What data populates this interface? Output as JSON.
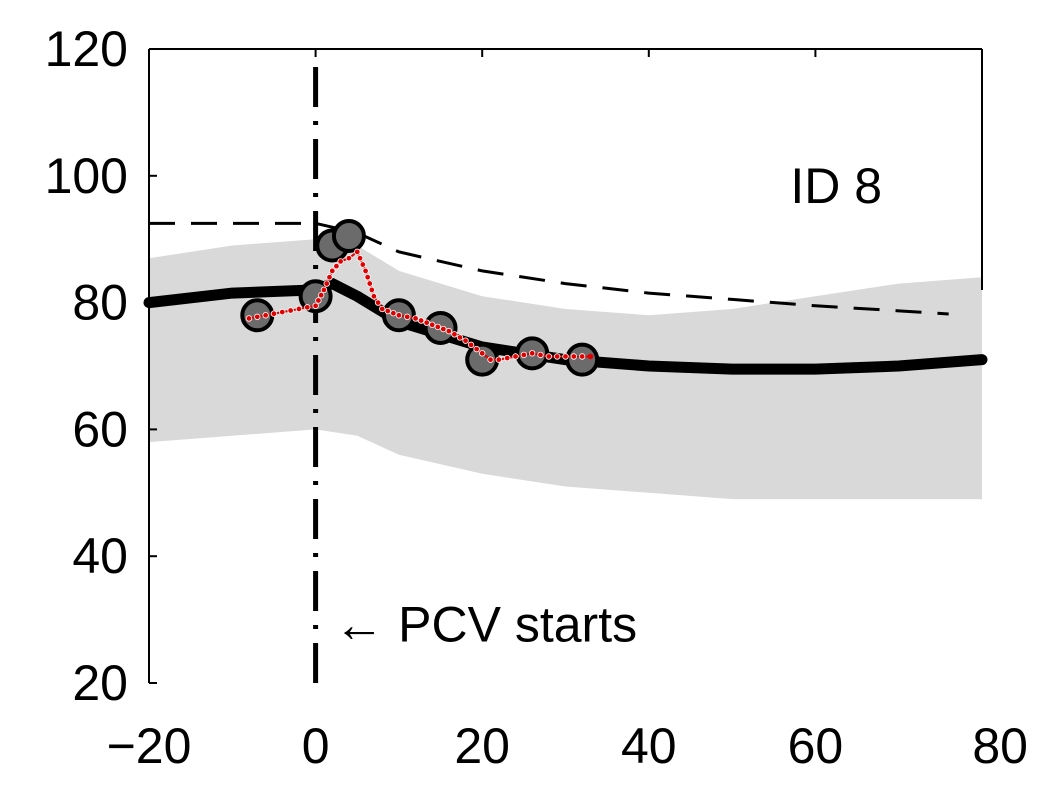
{
  "chart_data": {
    "type": "line",
    "title": "",
    "xlabel": "",
    "ylabel": "",
    "xlim": [
      -20,
      80
    ],
    "ylim": [
      20,
      120
    ],
    "xticks": [
      -20,
      0,
      20,
      40,
      60,
      80
    ],
    "yticks": [
      20,
      40,
      60,
      80,
      100,
      120
    ],
    "xtick_labels": [
      "−20",
      "0",
      "20",
      "40",
      "60",
      "80"
    ],
    "ytick_labels": [
      "20",
      "40",
      "60",
      "80",
      "100",
      "120"
    ],
    "grid": false,
    "band": {
      "x": [
        -20,
        -10,
        0,
        5,
        10,
        20,
        30,
        40,
        50,
        60,
        70,
        80
      ],
      "upper": [
        87,
        89,
        90,
        89,
        85,
        81,
        79,
        78,
        79,
        81,
        83,
        84
      ],
      "lower": [
        58,
        59,
        60,
        59,
        56,
        53,
        51,
        50,
        49,
        49,
        49,
        49
      ]
    },
    "series": [
      {
        "style": "dashed",
        "x": [
          -20,
          -10,
          0,
          5,
          10,
          20,
          30,
          40,
          50,
          60,
          70,
          76
        ],
        "values": [
          92.5,
          92.5,
          92.5,
          91,
          88,
          85,
          83,
          81.5,
          80.5,
          79.5,
          78.7,
          78.2
        ]
      },
      {
        "style": "solid",
        "x": [
          -20,
          -10,
          0,
          2,
          5,
          10,
          20,
          30,
          40,
          50,
          60,
          70,
          80
        ],
        "values": [
          80,
          81.5,
          82,
          83,
          81,
          77,
          73,
          71,
          70,
          69.5,
          69.5,
          70,
          71
        ]
      },
      {
        "style": "markers",
        "x": [
          -7,
          0,
          2,
          4,
          10,
          15,
          20,
          26,
          32
        ],
        "values": [
          78,
          81,
          89,
          90.5,
          78,
          76,
          71,
          72,
          71
        ]
      },
      {
        "style": "dotted-red",
        "x": [
          -8,
          -6,
          -4,
          -2,
          0,
          1,
          2,
          3,
          4,
          5,
          6,
          7,
          8,
          10,
          12,
          14,
          16,
          18,
          20,
          21,
          22,
          24,
          26,
          28,
          30,
          32,
          33
        ],
        "values": [
          77.5,
          78,
          78.5,
          79,
          79.5,
          82,
          85,
          86.5,
          87,
          88,
          85,
          81,
          79,
          78,
          77.5,
          76.5,
          75.5,
          74,
          72,
          71,
          71,
          71.5,
          72,
          71.5,
          71.5,
          71.5,
          71.5
        ]
      }
    ],
    "vline": {
      "x": 0,
      "style": "dash-dot"
    },
    "annotations": [
      {
        "text": "ID 8",
        "x": 57,
        "y": 100
      },
      {
        "text": "←  PCV starts",
        "x": 2,
        "y": 30
      }
    ]
  },
  "colors": {
    "band": "#d9d9d9",
    "line": "#000000",
    "marker_fill": "#6b6b6b",
    "marker_edge": "#000000",
    "red": "#e00000"
  }
}
